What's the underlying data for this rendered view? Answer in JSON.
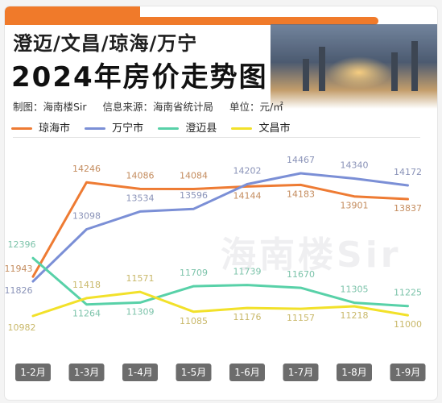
{
  "header": {
    "title_line1": "澄迈/文昌/琼海/万宁",
    "title_line2": "2024年房价走势图",
    "maker": "制图：海南楼Sir",
    "source": "信息来源：海南省统计局",
    "unit": "单位：元/㎡",
    "watermark": "海南楼Sir"
  },
  "colors": {
    "accent": "#f07a2a",
    "qionghai": "#ee7b33",
    "wanning": "#7b8fd6",
    "chengmai": "#58d1a8",
    "wenchang": "#f2e12a"
  },
  "chart_data": {
    "type": "line",
    "categories": [
      "1-2月",
      "1-3月",
      "1-4月",
      "1-5月",
      "1-6月",
      "1-7月",
      "1-8月",
      "1-9月"
    ],
    "title": "2024年房价走势图",
    "ylabel": "元/㎡",
    "grid": false,
    "legend_position": "top-left",
    "series": [
      {
        "name": "琼海市",
        "color": "#ee7b33",
        "values": [
          11943,
          14246,
          14086,
          14084,
          14144,
          14183,
          13901,
          13837
        ]
      },
      {
        "name": "万宁市",
        "color": "#7b8fd6",
        "values": [
          11826,
          13098,
          13534,
          13596,
          14202,
          14467,
          14340,
          14172
        ]
      },
      {
        "name": "澄迈县",
        "color": "#58d1a8",
        "values": [
          12396,
          11264,
          11309,
          11709,
          11739,
          11670,
          11305,
          11225
        ]
      },
      {
        "name": "文昌市",
        "color": "#f2e12a",
        "values": [
          10982,
          11418,
          11571,
          11085,
          11176,
          11157,
          11218,
          11000
        ]
      }
    ]
  }
}
